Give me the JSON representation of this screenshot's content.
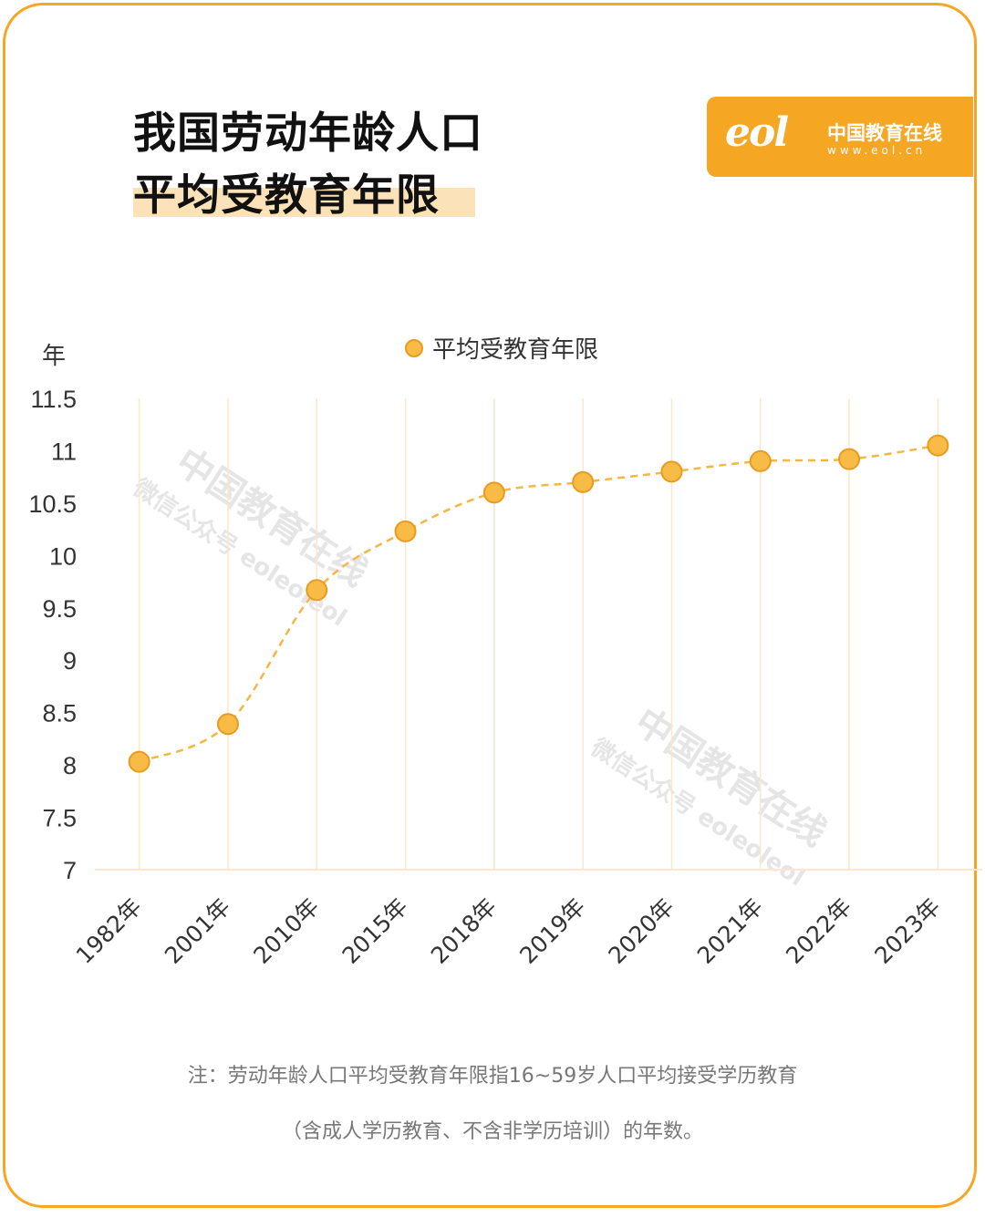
{
  "title": {
    "line1": "我国劳动年龄人口",
    "line2": "平均受教育年限"
  },
  "brand": {
    "logo_text": "eol",
    "name": "中国教育在线",
    "url": "www.eol.cn"
  },
  "watermark": {
    "main": "中国教育在线",
    "sub": "微信公众号 eoleoleol"
  },
  "chart_data": {
    "type": "line",
    "y_unit": "年",
    "categories": [
      "1982年",
      "2001年",
      "2010年",
      "2015年",
      "2018年",
      "2019年",
      "2020年",
      "2021年",
      "2022年",
      "2023年"
    ],
    "series": [
      {
        "name": "平均受教育年限",
        "values": [
          8.03,
          8.39,
          9.67,
          10.23,
          10.6,
          10.7,
          10.8,
          10.9,
          10.92,
          11.05
        ]
      }
    ],
    "ylim": [
      7,
      11.5
    ],
    "yticks": [
      "7",
      "7.5",
      "8",
      "8.5",
      "9",
      "9.5",
      "10",
      "10.5",
      "11",
      "11.5"
    ],
    "grid": "vertical",
    "legend_position": "top-center",
    "line_style": "dashed",
    "colors": {
      "line": "#f5b642",
      "marker_fill": "#f8bb46",
      "marker_stroke": "#e89b1f",
      "grid": "#fde7c8"
    }
  },
  "notes": {
    "line1": "注：劳动年龄人口平均受教育年限指16~59岁人口平均接受学历教育",
    "line2": "（含成人学历教育、不含非学历培训）的年数。"
  }
}
